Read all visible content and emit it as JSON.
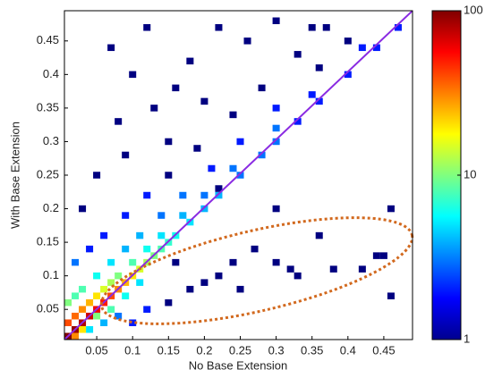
{
  "chart_data": {
    "type": "heatmap",
    "x_label": "No Base Extension",
    "y_label": "With Base Extension",
    "xlim": [
      0.005,
      0.49
    ],
    "ylim": [
      0.005,
      0.495
    ],
    "xticks": [
      0.05,
      0.1,
      0.15,
      0.2,
      0.25,
      0.3,
      0.35,
      0.4,
      0.45
    ],
    "yticks": [
      0.05,
      0.1,
      0.15,
      0.2,
      0.25,
      0.3,
      0.35,
      0.4,
      0.45
    ],
    "bin_size": 0.01,
    "colorbar": {
      "scale": "log",
      "clim": [
        1,
        100
      ],
      "ticks": [
        1,
        10,
        100
      ],
      "colormap": "jet"
    },
    "x": [
      0.01,
      0.02,
      0.03,
      0.04,
      0.05,
      0.06,
      0.07,
      0.08,
      0.09,
      0.1,
      0.11,
      0.12,
      0.13,
      0.14,
      0.15,
      0.16,
      0.18,
      0.2,
      0.22,
      0.25,
      0.28,
      0.3,
      0.33,
      0.36,
      0.4,
      0.44,
      0.47,
      0.01,
      0.02,
      0.03,
      0.04,
      0.05,
      0.06,
      0.07,
      0.08,
      0.1,
      0.12,
      0.14,
      0.17,
      0.2,
      0.24,
      0.3,
      0.35,
      0.42,
      0.01,
      0.02,
      0.03,
      0.05,
      0.07,
      0.09,
      0.11,
      0.14,
      0.17,
      0.21,
      0.25,
      0.3,
      0.36,
      0.4,
      0.02,
      0.04,
      0.06,
      0.09,
      0.12,
      0.15,
      0.19,
      0.24,
      0.28,
      0.33,
      0.37,
      0.03,
      0.05,
      0.08,
      0.1,
      0.12,
      0.07,
      0.18,
      0.2,
      0.15,
      0.22,
      0.26,
      0.3,
      0.35,
      0.16,
      0.09,
      0.13,
      0.04,
      0.06,
      0.08,
      0.1,
      0.12,
      0.15,
      0.18,
      0.2,
      0.22,
      0.24,
      0.27,
      0.3,
      0.32,
      0.33,
      0.36,
      0.38,
      0.42,
      0.44,
      0.45,
      0.46,
      0.46,
      0.22,
      0.3,
      0.25,
      0.16,
      0.07,
      0.05,
      0.03,
      0.02,
      0.09,
      0.11
    ],
    "y": [
      0.01,
      0.02,
      0.03,
      0.04,
      0.05,
      0.06,
      0.07,
      0.08,
      0.09,
      0.1,
      0.11,
      0.12,
      0.13,
      0.14,
      0.15,
      0.16,
      0.18,
      0.2,
      0.22,
      0.25,
      0.28,
      0.3,
      0.33,
      0.36,
      0.4,
      0.44,
      0.47,
      0.03,
      0.04,
      0.05,
      0.06,
      0.07,
      0.08,
      0.09,
      0.1,
      0.12,
      0.14,
      0.16,
      0.19,
      0.22,
      0.26,
      0.32,
      0.37,
      0.44,
      0.06,
      0.07,
      0.08,
      0.1,
      0.12,
      0.14,
      0.16,
      0.19,
      0.22,
      0.26,
      0.3,
      0.35,
      0.41,
      0.45,
      0.12,
      0.14,
      0.16,
      0.19,
      0.22,
      0.25,
      0.29,
      0.34,
      0.38,
      0.43,
      0.47,
      0.2,
      0.25,
      0.33,
      0.4,
      0.47,
      0.44,
      0.42,
      0.36,
      0.3,
      0.47,
      0.45,
      0.48,
      0.47,
      0.38,
      0.28,
      0.35,
      0.02,
      0.03,
      0.04,
      0.03,
      0.05,
      0.06,
      0.08,
      0.09,
      0.1,
      0.12,
      0.14,
      0.12,
      0.11,
      0.1,
      0.16,
      0.11,
      0.11,
      0.13,
      0.13,
      0.2,
      0.07,
      0.23,
      0.2,
      0.08,
      0.12,
      0.05,
      0.04,
      0.02,
      0.01,
      0.07,
      0.09
    ],
    "values": [
      100,
      90,
      80,
      70,
      60,
      50,
      40,
      30,
      25,
      20,
      15,
      12,
      10,
      8,
      7,
      6,
      5,
      4,
      4,
      3,
      3,
      3,
      2,
      2,
      2,
      2,
      2,
      40,
      35,
      30,
      25,
      20,
      15,
      12,
      10,
      8,
      6,
      5,
      4,
      3,
      3,
      3,
      2,
      2,
      10,
      8,
      8,
      6,
      5,
      4,
      4,
      3,
      3,
      2,
      2,
      2,
      1,
      1,
      3,
      2,
      2,
      2,
      2,
      1,
      1,
      1,
      1,
      1,
      1,
      1,
      1,
      1,
      1,
      1,
      1,
      1,
      1,
      1,
      1,
      1,
      1,
      1,
      1,
      1,
      1,
      5,
      4,
      3,
      2,
      2,
      1,
      1,
      1,
      1,
      1,
      1,
      1,
      1,
      1,
      1,
      1,
      1,
      1,
      1,
      1,
      1,
      1,
      1,
      1,
      1,
      8,
      10,
      20,
      30,
      6,
      5
    ]
  }
}
